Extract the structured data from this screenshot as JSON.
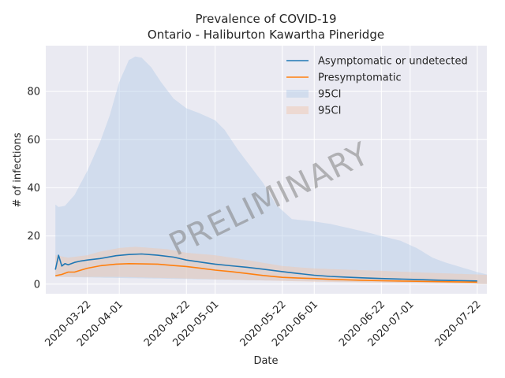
{
  "chart_data": {
    "type": "line",
    "title": "Prevalence of COVID-19",
    "subtitle": "Ontario - Haliburton Kawartha Pineridge",
    "xlabel": "Date",
    "ylabel": "# of infections",
    "ylim": [
      -4,
      99
    ],
    "xlim": [
      "2020-03-09",
      "2020-07-25"
    ],
    "grid": true,
    "legend_position": "top-right",
    "watermark": "PRELIMINARY",
    "x_ticks": [
      "2020-03-22",
      "2020-04-01",
      "2020-04-22",
      "2020-05-01",
      "2020-05-22",
      "2020-06-01",
      "2020-06-22",
      "2020-07-01",
      "2020-07-22"
    ],
    "y_ticks": [
      0,
      20,
      40,
      60,
      80
    ],
    "series": [
      {
        "name": "Asymptomatic or undetected",
        "color": "#1f77b4",
        "points": [
          [
            "2020-03-12",
            6
          ],
          [
            "2020-03-13",
            12
          ],
          [
            "2020-03-14",
            7.5
          ],
          [
            "2020-03-15",
            8.5
          ],
          [
            "2020-03-16",
            8
          ],
          [
            "2020-03-18",
            9
          ],
          [
            "2020-03-20",
            9.6
          ],
          [
            "2020-03-22",
            10
          ],
          [
            "2020-03-26",
            10.6
          ],
          [
            "2020-03-31",
            11.8
          ],
          [
            "2020-04-04",
            12.3
          ],
          [
            "2020-04-08",
            12.5
          ],
          [
            "2020-04-13",
            12
          ],
          [
            "2020-04-18",
            11.2
          ],
          [
            "2020-04-22",
            10
          ],
          [
            "2020-04-27",
            9
          ],
          [
            "2020-05-01",
            8.3
          ],
          [
            "2020-05-06",
            7.6
          ],
          [
            "2020-05-11",
            7
          ],
          [
            "2020-05-16",
            6.2
          ],
          [
            "2020-05-22",
            5.2
          ],
          [
            "2020-05-27",
            4.4
          ],
          [
            "2020-06-01",
            3.7
          ],
          [
            "2020-06-06",
            3.2
          ],
          [
            "2020-06-11",
            2.9
          ],
          [
            "2020-06-16",
            2.6
          ],
          [
            "2020-06-22",
            2.3
          ],
          [
            "2020-07-01",
            2
          ],
          [
            "2020-07-11",
            1.6
          ],
          [
            "2020-07-22",
            1.3
          ]
        ],
        "ci_label": "95CI",
        "ci_color": "#aec7e8",
        "ci_upper": [
          [
            "2020-03-12",
            33
          ],
          [
            "2020-03-13",
            32
          ],
          [
            "2020-03-15",
            32.5
          ],
          [
            "2020-03-18",
            37
          ],
          [
            "2020-03-22",
            47
          ],
          [
            "2020-03-26",
            59
          ],
          [
            "2020-03-29",
            70
          ],
          [
            "2020-04-01",
            84
          ],
          [
            "2020-04-04",
            93
          ],
          [
            "2020-04-06",
            94.5
          ],
          [
            "2020-04-08",
            94
          ],
          [
            "2020-04-11",
            90
          ],
          [
            "2020-04-14",
            84
          ],
          [
            "2020-04-18",
            77
          ],
          [
            "2020-04-22",
            73
          ],
          [
            "2020-04-26",
            71
          ],
          [
            "2020-05-01",
            68
          ],
          [
            "2020-05-04",
            64
          ],
          [
            "2020-05-08",
            56
          ],
          [
            "2020-05-12",
            49
          ],
          [
            "2020-05-16",
            42
          ],
          [
            "2020-05-20",
            33
          ],
          [
            "2020-05-25",
            27
          ],
          [
            "2020-06-01",
            26
          ],
          [
            "2020-06-06",
            25
          ],
          [
            "2020-06-11",
            23.5
          ],
          [
            "2020-06-16",
            22
          ],
          [
            "2020-06-22",
            20
          ],
          [
            "2020-06-28",
            18
          ],
          [
            "2020-07-03",
            15
          ],
          [
            "2020-07-08",
            11
          ],
          [
            "2020-07-12",
            9
          ],
          [
            "2020-07-17",
            7
          ],
          [
            "2020-07-22",
            5
          ],
          [
            "2020-07-25",
            4
          ]
        ],
        "ci_lower": [
          [
            "2020-03-12",
            3
          ],
          [
            "2020-07-25",
            0
          ]
        ]
      },
      {
        "name": "Presymptomatic",
        "color": "#ff7f0e",
        "points": [
          [
            "2020-03-12",
            3.5
          ],
          [
            "2020-03-14",
            4
          ],
          [
            "2020-03-16",
            5
          ],
          [
            "2020-03-18",
            5
          ],
          [
            "2020-03-20",
            5.8
          ],
          [
            "2020-03-22",
            6.6
          ],
          [
            "2020-03-26",
            7.6
          ],
          [
            "2020-03-31",
            8.3
          ],
          [
            "2020-04-04",
            8.5
          ],
          [
            "2020-04-08",
            8.4
          ],
          [
            "2020-04-13",
            8.3
          ],
          [
            "2020-04-18",
            7.7
          ],
          [
            "2020-04-22",
            7.3
          ],
          [
            "2020-04-27",
            6.5
          ],
          [
            "2020-05-01",
            5.8
          ],
          [
            "2020-05-06",
            5.2
          ],
          [
            "2020-05-11",
            4.4
          ],
          [
            "2020-05-16",
            3.6
          ],
          [
            "2020-05-22",
            2.8
          ],
          [
            "2020-05-27",
            2.5
          ],
          [
            "2020-06-01",
            2.3
          ],
          [
            "2020-06-06",
            2
          ],
          [
            "2020-06-11",
            1.8
          ],
          [
            "2020-06-16",
            1.6
          ],
          [
            "2020-06-22",
            1.4
          ],
          [
            "2020-07-01",
            1.2
          ],
          [
            "2020-07-11",
            1
          ],
          [
            "2020-07-22",
            0.8
          ]
        ],
        "ci_label": "95CI",
        "ci_color": "#f0c8b2",
        "ci_upper": [
          [
            "2020-03-12",
            12
          ],
          [
            "2020-03-16",
            11
          ],
          [
            "2020-03-22",
            12
          ],
          [
            "2020-03-26",
            13.5
          ],
          [
            "2020-04-01",
            15
          ],
          [
            "2020-04-06",
            15.5
          ],
          [
            "2020-04-11",
            15
          ],
          [
            "2020-04-16",
            14.5
          ],
          [
            "2020-04-22",
            13
          ],
          [
            "2020-05-01",
            12
          ],
          [
            "2020-05-11",
            10
          ],
          [
            "2020-05-22",
            7.5
          ],
          [
            "2020-06-01",
            6.5
          ],
          [
            "2020-06-11",
            6
          ],
          [
            "2020-06-22",
            5.5
          ],
          [
            "2020-07-01",
            5
          ],
          [
            "2020-07-11",
            4.5
          ],
          [
            "2020-07-22",
            4
          ],
          [
            "2020-07-25",
            3.8
          ]
        ],
        "ci_lower": [
          [
            "2020-03-12",
            3
          ],
          [
            "2020-04-01",
            3
          ],
          [
            "2020-05-01",
            2
          ],
          [
            "2020-06-01",
            1
          ],
          [
            "2020-07-25",
            0
          ]
        ]
      }
    ]
  }
}
